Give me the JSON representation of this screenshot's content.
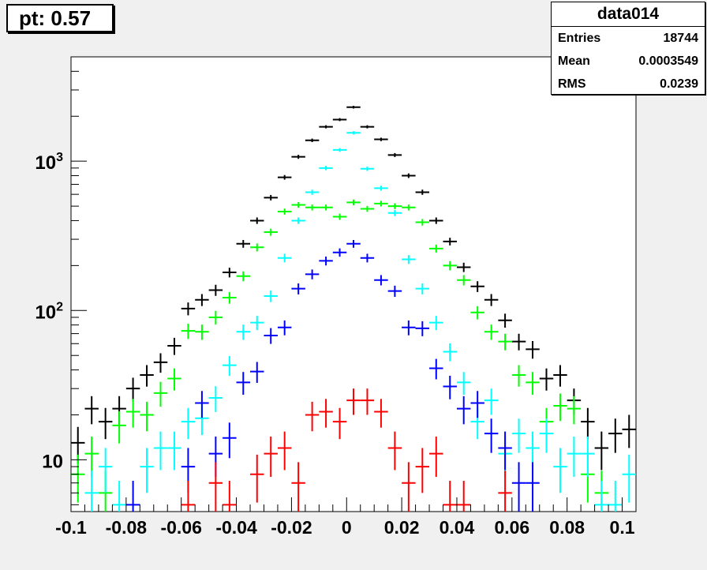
{
  "title": "pt: 0.57",
  "stats": {
    "name": "data014",
    "rows": [
      {
        "label": "Entries",
        "value": "18744"
      },
      {
        "label": "Mean",
        "value": "0.0003549"
      },
      {
        "label": "RMS",
        "value": "0.0239"
      }
    ]
  },
  "chart_data": {
    "type": "scatter",
    "title": "pt: 0.57",
    "xlabel": "",
    "ylabel": "",
    "xlim": [
      -0.1,
      0.105
    ],
    "ylim": [
      4.5,
      5000
    ],
    "yscale": "log",
    "bin_width": 0.005,
    "x_ticks": [
      {
        "value": -0.1,
        "label": "-0.1"
      },
      {
        "value": -0.08,
        "label": "-0.08"
      },
      {
        "value": -0.06,
        "label": "-0.06"
      },
      {
        "value": -0.04,
        "label": "-0.04"
      },
      {
        "value": -0.02,
        "label": "-0.02"
      },
      {
        "value": 0,
        "label": "0"
      },
      {
        "value": 0.02,
        "label": "0.02"
      },
      {
        "value": 0.04,
        "label": "0.04"
      },
      {
        "value": 0.06,
        "label": "0.06"
      },
      {
        "value": 0.08,
        "label": "0.08"
      },
      {
        "value": 0.1,
        "label": "0.1"
      }
    ],
    "y_ticks": [
      {
        "value": 10,
        "base": "10",
        "exp": ""
      },
      {
        "value": 100,
        "base": "10",
        "exp": "2"
      },
      {
        "value": 1000,
        "base": "10",
        "exp": "3"
      }
    ],
    "series": [
      {
        "color": "#000000",
        "points": [
          [
            -0.0975,
            13
          ],
          [
            -0.0925,
            22
          ],
          [
            -0.0875,
            18
          ],
          [
            -0.0825,
            22
          ],
          [
            -0.0775,
            30
          ],
          [
            -0.0725,
            37
          ],
          [
            -0.0675,
            45
          ],
          [
            -0.0625,
            58
          ],
          [
            -0.0575,
            103
          ],
          [
            -0.0525,
            118
          ],
          [
            -0.0475,
            137
          ],
          [
            -0.0425,
            180
          ],
          [
            -0.0375,
            280
          ],
          [
            -0.0325,
            400
          ],
          [
            -0.0275,
            570
          ],
          [
            -0.0225,
            780
          ],
          [
            -0.0175,
            1070
          ],
          [
            -0.0125,
            1380
          ],
          [
            -0.0075,
            1700
          ],
          [
            -0.0025,
            1900
          ],
          [
            0.0025,
            2300
          ],
          [
            0.0075,
            1700
          ],
          [
            0.0125,
            1400
          ],
          [
            0.0175,
            1100
          ],
          [
            0.0225,
            800
          ],
          [
            0.0275,
            620
          ],
          [
            0.0325,
            400
          ],
          [
            0.0375,
            290
          ],
          [
            0.0425,
            195
          ],
          [
            0.0475,
            145
          ],
          [
            0.0525,
            118
          ],
          [
            0.0575,
            86
          ],
          [
            0.0625,
            62
          ],
          [
            0.0675,
            55
          ],
          [
            0.0725,
            35
          ],
          [
            0.0775,
            37
          ],
          [
            0.0825,
            25
          ],
          [
            0.0875,
            18
          ],
          [
            0.0925,
            12
          ],
          [
            0.0975,
            15
          ],
          [
            0.1025,
            16
          ]
        ]
      },
      {
        "color": "#00ff00",
        "points": [
          [
            -0.0975,
            8
          ],
          [
            -0.0925,
            11
          ],
          [
            -0.0875,
            6
          ],
          [
            -0.0825,
            17
          ],
          [
            -0.0775,
            21
          ],
          [
            -0.0725,
            20
          ],
          [
            -0.0675,
            28
          ],
          [
            -0.0625,
            35
          ],
          [
            -0.0575,
            73
          ],
          [
            -0.0525,
            72
          ],
          [
            -0.0475,
            90
          ],
          [
            -0.0425,
            122
          ],
          [
            -0.0375,
            170
          ],
          [
            -0.0325,
            265
          ],
          [
            -0.0275,
            335
          ],
          [
            -0.0225,
            460
          ],
          [
            -0.0175,
            510
          ],
          [
            -0.0125,
            490
          ],
          [
            -0.0075,
            490
          ],
          [
            -0.0025,
            425
          ],
          [
            0.0025,
            530
          ],
          [
            0.0075,
            480
          ],
          [
            0.0125,
            520
          ],
          [
            0.0175,
            500
          ],
          [
            0.0225,
            490
          ],
          [
            0.0275,
            390
          ],
          [
            0.0325,
            260
          ],
          [
            0.0375,
            200
          ],
          [
            0.0425,
            160
          ],
          [
            0.0475,
            97
          ],
          [
            0.0525,
            72
          ],
          [
            0.0575,
            62
          ],
          [
            0.0625,
            37
          ],
          [
            0.0675,
            33
          ],
          [
            0.0725,
            18
          ],
          [
            0.0775,
            23
          ],
          [
            0.0825,
            22
          ],
          [
            0.0875,
            8
          ],
          [
            0.0925,
            6
          ]
        ]
      },
      {
        "color": "#00ffff",
        "points": [
          [
            -0.0925,
            6
          ],
          [
            -0.0875,
            9
          ],
          [
            -0.0825,
            5
          ],
          [
            -0.0725,
            9
          ],
          [
            -0.0675,
            12
          ],
          [
            -0.0625,
            12
          ],
          [
            -0.0575,
            18
          ],
          [
            -0.0525,
            19
          ],
          [
            -0.0475,
            26
          ],
          [
            -0.0425,
            43
          ],
          [
            -0.0375,
            72
          ],
          [
            -0.0325,
            83
          ],
          [
            -0.0275,
            125
          ],
          [
            -0.0225,
            225
          ],
          [
            -0.0175,
            400
          ],
          [
            -0.0125,
            620
          ],
          [
            -0.0075,
            900
          ],
          [
            -0.0025,
            1190
          ],
          [
            0.0025,
            1550
          ],
          [
            0.0075,
            890
          ],
          [
            0.0125,
            660
          ],
          [
            0.0175,
            450
          ],
          [
            0.0225,
            220
          ],
          [
            0.0275,
            140
          ],
          [
            0.0325,
            83
          ],
          [
            0.0375,
            53
          ],
          [
            0.0425,
            33
          ],
          [
            0.0475,
            18
          ],
          [
            0.0525,
            25
          ],
          [
            0.0575,
            11
          ],
          [
            0.0625,
            15
          ],
          [
            0.0675,
            12
          ],
          [
            0.0725,
            15
          ],
          [
            0.0775,
            9
          ],
          [
            0.0825,
            11
          ],
          [
            0.0875,
            11
          ],
          [
            0.0925,
            5
          ],
          [
            0.0975,
            5
          ],
          [
            0.1025,
            8
          ]
        ]
      },
      {
        "color": "#0000ff",
        "points": [
          [
            -0.0775,
            5
          ],
          [
            -0.0575,
            9
          ],
          [
            -0.0525,
            24
          ],
          [
            -0.0475,
            11
          ],
          [
            -0.0425,
            14
          ],
          [
            -0.0375,
            33
          ],
          [
            -0.0325,
            39
          ],
          [
            -0.0275,
            68
          ],
          [
            -0.0225,
            77
          ],
          [
            -0.0175,
            140
          ],
          [
            -0.0125,
            175
          ],
          [
            -0.0075,
            215
          ],
          [
            -0.0025,
            245
          ],
          [
            0.0025,
            280
          ],
          [
            0.0075,
            225
          ],
          [
            0.0125,
            160
          ],
          [
            0.0175,
            135
          ],
          [
            0.0225,
            77
          ],
          [
            0.0275,
            76
          ],
          [
            0.0325,
            41
          ],
          [
            0.0375,
            31
          ],
          [
            0.0425,
            22
          ],
          [
            0.0475,
            24
          ],
          [
            0.0525,
            15
          ],
          [
            0.0575,
            12
          ],
          [
            0.0625,
            7
          ],
          [
            0.0675,
            7
          ]
        ]
      },
      {
        "color": "#ff0000",
        "points": [
          [
            -0.0575,
            5
          ],
          [
            -0.0475,
            7
          ],
          [
            -0.0425,
            5
          ],
          [
            -0.0325,
            8
          ],
          [
            -0.0275,
            11
          ],
          [
            -0.0225,
            12
          ],
          [
            -0.0175,
            7
          ],
          [
            -0.0125,
            20
          ],
          [
            -0.0075,
            21
          ],
          [
            -0.0025,
            18
          ],
          [
            0.0025,
            25
          ],
          [
            0.0075,
            25
          ],
          [
            0.0125,
            21
          ],
          [
            0.0175,
            12
          ],
          [
            0.0225,
            7
          ],
          [
            0.0275,
            9
          ],
          [
            0.0325,
            11
          ],
          [
            0.0375,
            5
          ],
          [
            0.0425,
            5
          ],
          [
            0.0575,
            6
          ]
        ]
      }
    ]
  }
}
